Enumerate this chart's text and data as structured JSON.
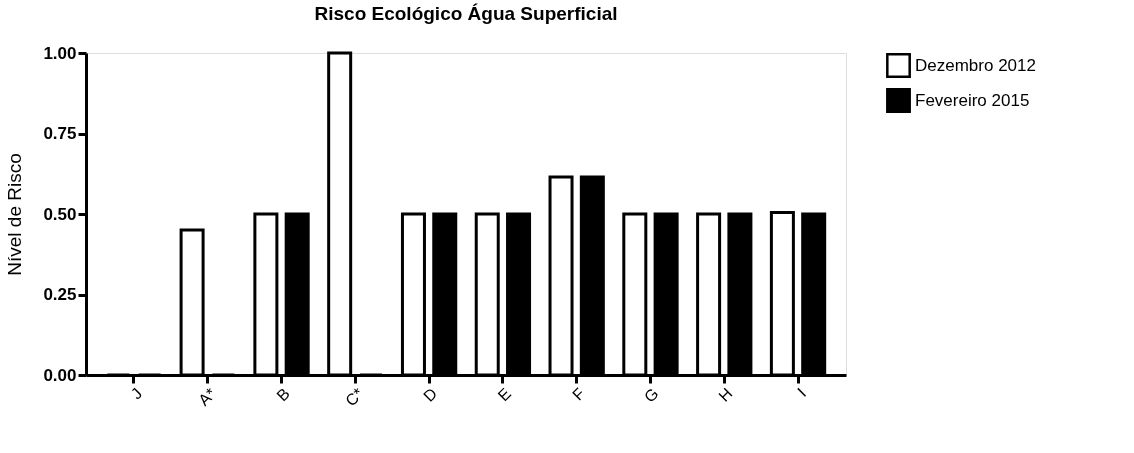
{
  "chart_data": {
    "type": "bar",
    "title": "Risco Ecológico Água Superficial",
    "ylabel": "Nível de Risco",
    "categories": [
      "J",
      "A*",
      "B",
      "C*",
      "D",
      "E",
      "F",
      "G",
      "H",
      "I"
    ],
    "series": [
      {
        "name": "Dezembro 2012",
        "color": "#ffffff",
        "values": [
          0,
          0.45,
          0.5,
          1.0,
          0.5,
          0.5,
          0.615,
          0.5,
          0.5,
          0.505
        ]
      },
      {
        "name": "Fevereiro 2015",
        "color": "#000000",
        "values": [
          0,
          0,
          0.5,
          0,
          0.5,
          0.5,
          0.615,
          0.5,
          0.5,
          0.5
        ]
      }
    ],
    "ylim": [
      0,
      1.0
    ],
    "yticks": [
      {
        "value": 0,
        "label": "0.00"
      },
      {
        "value": 0.25,
        "label": "0.25"
      },
      {
        "value": 0.5,
        "label": "0.50"
      },
      {
        "value": 0.75,
        "label": "0.75"
      },
      {
        "value": 1.0,
        "label": "1.00"
      }
    ],
    "grid": false,
    "legend": "right"
  }
}
